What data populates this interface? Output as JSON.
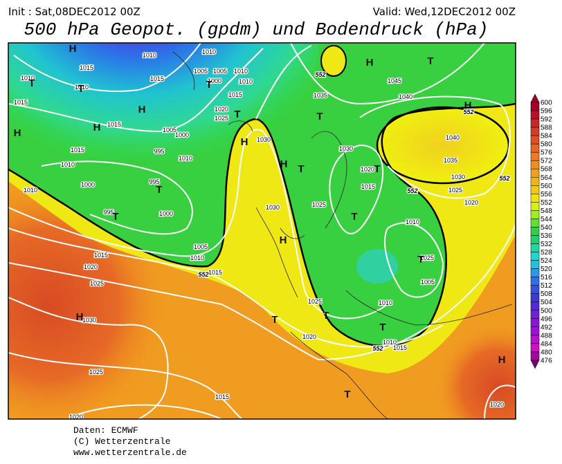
{
  "header": {
    "init": "Init : Sat,08DEC2012 00Z",
    "valid": "Valid: Wed,12DEC2012 00Z",
    "title": "500 hPa Geopot. (gpdm) und Bodendruck (hPa)"
  },
  "colorbar": {
    "labels": [
      600,
      596,
      592,
      588,
      584,
      580,
      576,
      572,
      568,
      564,
      560,
      556,
      552,
      548,
      544,
      540,
      536,
      532,
      528,
      524,
      520,
      516,
      512,
      508,
      504,
      500,
      496,
      492,
      488,
      484,
      480,
      476
    ]
  },
  "map": {
    "isobar_labels": [
      "1010",
      "1010",
      "1015",
      "1010",
      "1010",
      "1015",
      "1005",
      "1005",
      "1010",
      "1000",
      "1010",
      "1015",
      "1015",
      "1020",
      "1025",
      "1015",
      "1005",
      "1000",
      "995",
      "1010",
      "1015",
      "1010",
      "1000",
      "995",
      "995",
      "1000",
      "1010",
      "1005",
      "1010",
      "1015",
      "1015",
      "1020",
      "1025",
      "1030",
      "1025",
      "1015",
      "1020",
      "1030",
      "1030",
      "1035",
      "1045",
      "1040",
      "1030",
      "1020",
      "1015",
      "1025",
      "1010",
      "1005",
      "1025",
      "1010",
      "1010",
      "1015",
      "1020",
      "1025",
      "1040",
      "1035",
      "1030",
      "1025",
      "1020",
      "1020"
    ],
    "contour_labels": [
      "552",
      "552",
      "552",
      "552",
      "552",
      "552"
    ],
    "centers": [
      "H",
      "T",
      "T",
      "H",
      "H",
      "H",
      "T",
      "T",
      "H",
      "H",
      "T",
      "T",
      "H",
      "T",
      "T",
      "T",
      "T",
      "T",
      "H",
      "H",
      "T",
      "T",
      "T",
      "T",
      "H",
      "T",
      "H"
    ]
  },
  "footer": {
    "source": "Daten: ECMWF",
    "copyright": "(C) Wetterzentrale",
    "url": "www.wetterzentrale.de"
  }
}
